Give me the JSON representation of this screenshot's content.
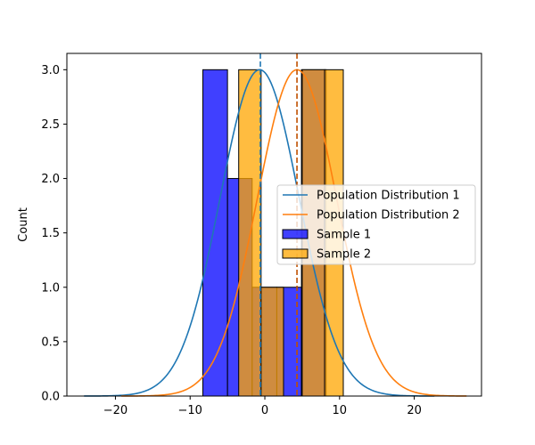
{
  "chart_data": {
    "type": "bar",
    "title": "",
    "xlabel": "",
    "ylabel": "Count",
    "xlim": [
      -26.5,
      29
    ],
    "ylim": [
      0,
      3.15
    ],
    "xticks": [
      -20,
      -10,
      0,
      10,
      20
    ],
    "yticks": [
      0.0,
      0.5,
      1.0,
      1.5,
      2.0,
      2.5,
      3.0
    ],
    "xtick_labels": [
      "−20",
      "−10",
      "0",
      "10",
      "20"
    ],
    "ytick_labels": [
      "0.0",
      "0.5",
      "1.0",
      "1.5",
      "2.0",
      "2.5",
      "3.0"
    ],
    "grid": false,
    "legend_position": "center-right",
    "series": [
      {
        "name": "Sample 1",
        "kind": "histogram",
        "color": "#0000ff",
        "bins": [
          {
            "x0": -8.3,
            "x1": -5.0,
            "count": 3
          },
          {
            "x0": -5.0,
            "x1": -1.7,
            "count": 2
          },
          {
            "x0": -1.7,
            "x1": 1.6,
            "count": 1
          },
          {
            "x0": 1.6,
            "x1": 4.9,
            "count": 1
          },
          {
            "x0": 4.9,
            "x1": 8.2,
            "count": 3
          }
        ]
      },
      {
        "name": "Sample 2",
        "kind": "histogram",
        "color": "#ffa500",
        "bins": [
          {
            "x0": -3.5,
            "x1": -0.5,
            "count": 3
          },
          {
            "x0": -0.5,
            "x1": 2.5,
            "count": 1
          },
          {
            "x0": 2.5,
            "x1": 5.0,
            "count": 0
          },
          {
            "x0": 5.0,
            "x1": 8.0,
            "count": 3
          },
          {
            "x0": 8.0,
            "x1": 10.5,
            "count": 3
          }
        ]
      },
      {
        "name": "Population Distribution 1",
        "kind": "normal_curve",
        "color": "#1f77b4",
        "mean": -0.7,
        "sd": 5.3,
        "peak": 3.0,
        "x_range": [
          -24.2,
          22.7
        ]
      },
      {
        "name": "Population Distribution 2",
        "kind": "normal_curve",
        "color": "#ff7f0e",
        "mean": 4.3,
        "sd": 5.3,
        "peak": 3.0,
        "x_range": [
          -19.2,
          27.0
        ]
      }
    ],
    "vlines": [
      {
        "x": -0.6,
        "color": "#1f77b4",
        "style": "dashed"
      },
      {
        "x": 4.3,
        "color": "#c05000",
        "style": "dashed"
      }
    ],
    "legend": [
      "Population Distribution 1",
      "Population Distribution 2",
      "Sample 1",
      "Sample 2"
    ]
  }
}
